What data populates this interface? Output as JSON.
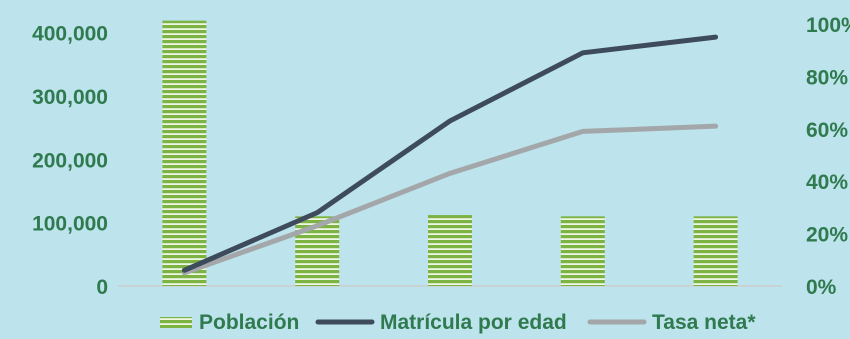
{
  "chart_data": {
    "type": "bar",
    "categories": [
      "",
      "",
      "",
      "",
      ""
    ],
    "series": [
      {
        "name": "Población",
        "kind": "bar",
        "axis": "left",
        "color": "#7cb342",
        "values": [
          419000,
          110000,
          112000,
          110000,
          110000
        ]
      },
      {
        "name": "Matrícula por edad",
        "kind": "line",
        "axis": "right",
        "color": "#3d4b5c",
        "values": [
          0.06,
          0.28,
          0.63,
          0.89,
          0.95
        ]
      },
      {
        "name": "Tasa neta*",
        "kind": "line",
        "axis": "right",
        "color": "#a3a7a9",
        "values": [
          0.05,
          0.23,
          0.43,
          0.59,
          0.61
        ]
      }
    ],
    "ylim_left": [
      0,
      420000
    ],
    "ylim_right": [
      0,
      1.0
    ],
    "left_ticks": [
      {
        "value": 0,
        "label": "0"
      },
      {
        "value": 100000,
        "label": "100,000"
      },
      {
        "value": 200000,
        "label": "200,000"
      },
      {
        "value": 300000,
        "label": "300,000"
      },
      {
        "value": 400000,
        "label": "400,000"
      }
    ],
    "right_ticks": [
      {
        "value": 0,
        "label": "0%"
      },
      {
        "value": 0.2,
        "label": "20%"
      },
      {
        "value": 0.4,
        "label": "40%"
      },
      {
        "value": 0.6,
        "label": "60%"
      },
      {
        "value": 0.8,
        "label": "80%"
      },
      {
        "value": 1.0,
        "label": "100%"
      }
    ],
    "grid": false,
    "legend_position": "bottom",
    "colors": {
      "background": "#bde3ec",
      "tick_text": "#2f7a4e",
      "bar_stripe": "#7cb342",
      "axis": "#c9d3d6"
    }
  }
}
